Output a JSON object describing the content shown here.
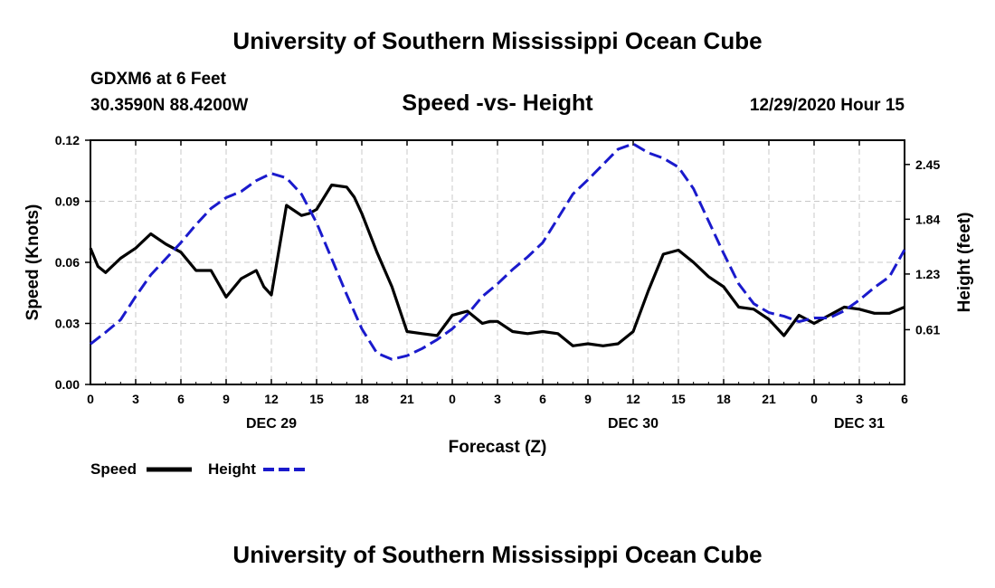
{
  "header": {
    "title": "University of Southern Mississippi Ocean Cube",
    "station": "GDXM6 at 6 Feet",
    "coordinates": "30.3590N 88.4200W",
    "chart_title": "Speed -vs- Height",
    "datetime": "12/29/2020 Hour 15"
  },
  "footer": {
    "title": "University of Southern Mississippi Ocean Cube"
  },
  "legend": {
    "speed_label": "Speed",
    "height_label": "Height"
  },
  "colors": {
    "speed": "#000000",
    "height": "#1a1acc",
    "grid": "#c8c8c8"
  },
  "chart_data": {
    "type": "line",
    "title": "Speed -vs- Height",
    "xlabel": "Forecast (Z)",
    "ylabel": "Speed (Knots)",
    "ylabel_right": "Height (feet)",
    "x_range_hours": [
      0,
      54
    ],
    "x_tick_hours": [
      0,
      3,
      6,
      9,
      12,
      15,
      18,
      21,
      24,
      27,
      30,
      33,
      36,
      39,
      42,
      45,
      48,
      51,
      54
    ],
    "x_tick_labels": [
      "0",
      "3",
      "6",
      "9",
      "12",
      "15",
      "18",
      "21",
      "0",
      "3",
      "6",
      "9",
      "12",
      "15",
      "18",
      "21",
      "0",
      "3",
      "6"
    ],
    "day_labels": [
      {
        "hour": 12,
        "label": "DEC 29"
      },
      {
        "hour": 36,
        "label": "DEC 30"
      },
      {
        "hour": 51,
        "label": "DEC 31"
      }
    ],
    "y_left": {
      "range": [
        0,
        0.12
      ],
      "ticks": [
        0.0,
        0.03,
        0.06,
        0.09,
        0.12
      ],
      "tick_labels": [
        "0.00",
        "0.03",
        "0.06",
        "0.09",
        "0.12"
      ]
    },
    "y_right": {
      "range": [
        0,
        2.72
      ],
      "ticks": [
        0.61,
        1.23,
        1.84,
        2.45
      ],
      "tick_labels": [
        "0.61",
        "1.23",
        "1.84",
        "2.45"
      ]
    },
    "grid": true,
    "series": [
      {
        "name": "Speed",
        "axis": "left",
        "style": "solid",
        "x": [
          0,
          0.5,
          1,
          2,
          3,
          4,
          5,
          6,
          7,
          8,
          9,
          10,
          11,
          11.5,
          12,
          13,
          14,
          14.5,
          15,
          16,
          17,
          17.5,
          18,
          19,
          20,
          21,
          22,
          23,
          24,
          25,
          26,
          26.5,
          27,
          28,
          29,
          30,
          31,
          32,
          33,
          34,
          35,
          36,
          37,
          38,
          39,
          40,
          41,
          42,
          43,
          44,
          45,
          46,
          47,
          48,
          49,
          50,
          51,
          52,
          53,
          54
        ],
        "values": [
          0.067,
          0.058,
          0.055,
          0.062,
          0.067,
          0.074,
          0.069,
          0.065,
          0.056,
          0.056,
          0.043,
          0.052,
          0.056,
          0.048,
          0.044,
          0.088,
          0.083,
          0.084,
          0.086,
          0.098,
          0.097,
          0.092,
          0.084,
          0.065,
          0.048,
          0.026,
          0.025,
          0.024,
          0.034,
          0.036,
          0.03,
          0.031,
          0.031,
          0.026,
          0.025,
          0.026,
          0.025,
          0.019,
          0.02,
          0.019,
          0.02,
          0.026,
          0.046,
          0.064,
          0.066,
          0.06,
          0.053,
          0.048,
          0.038,
          0.037,
          0.032,
          0.024,
          0.034,
          0.03,
          0.034,
          0.038,
          0.037,
          0.035,
          0.035,
          0.038
        ]
      },
      {
        "name": "Height",
        "axis": "right",
        "style": "dashed",
        "x": [
          0,
          1,
          2,
          3,
          4,
          5,
          6,
          7,
          8,
          9,
          10,
          11,
          12,
          13,
          14,
          15,
          16,
          17,
          18,
          19,
          20,
          21,
          22,
          23,
          24,
          25,
          26,
          27,
          28,
          29,
          30,
          31,
          32,
          33,
          34,
          35,
          36,
          37,
          38,
          39,
          40,
          41,
          42,
          43,
          44,
          45,
          46,
          47,
          48,
          49,
          50,
          51,
          52,
          53,
          54
        ],
        "values": [
          0.45,
          0.58,
          0.72,
          0.98,
          1.22,
          1.4,
          1.58,
          1.78,
          1.96,
          2.08,
          2.15,
          2.27,
          2.35,
          2.3,
          2.12,
          1.8,
          1.4,
          1.0,
          0.62,
          0.35,
          0.28,
          0.32,
          0.4,
          0.5,
          0.62,
          0.78,
          0.98,
          1.12,
          1.28,
          1.42,
          1.58,
          1.85,
          2.12,
          2.28,
          2.45,
          2.62,
          2.68,
          2.58,
          2.52,
          2.42,
          2.18,
          1.82,
          1.46,
          1.12,
          0.9,
          0.8,
          0.76,
          0.7,
          0.74,
          0.74,
          0.82,
          0.94,
          1.08,
          1.2,
          1.5
        ]
      }
    ]
  }
}
